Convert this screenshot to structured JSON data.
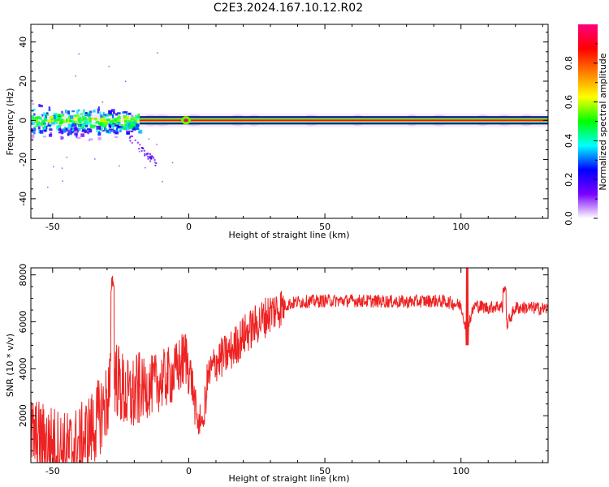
{
  "title": "C2E3.2024.167.10.12.R02",
  "chart_data": [
    {
      "type": "heatmap",
      "xlabel": "Height of straight line (km)",
      "ylabel": "Frequency (Hz)",
      "xlim": [
        -58,
        132
      ],
      "ylim": [
        -50,
        49
      ],
      "xticks": [
        -50,
        0,
        50,
        100
      ],
      "yticks": [
        -40,
        -20,
        0,
        20,
        40
      ],
      "grid": false,
      "colorbar": {
        "label": "Normalized spectral amplitude",
        "range": [
          0.0,
          1.0
        ],
        "ticks": [
          0.0,
          0.2,
          0.4,
          0.6,
          0.8
        ],
        "colors": [
          "#ffffff",
          "#7a00ff",
          "#0000ff",
          "#00ffff",
          "#00ff00",
          "#ffff00",
          "#ff7f00",
          "#ff0000",
          "#ff0080"
        ]
      },
      "carrier": {
        "frequency_hz": 0,
        "x_range": [
          -58,
          132
        ]
      },
      "scatter_region": {
        "x_range": [
          -58,
          -18
        ],
        "y_range": [
          -10,
          5
        ]
      }
    },
    {
      "type": "line",
      "xlabel": "Height of straight line (km)",
      "ylabel": "SNR (10 * v/v)",
      "xlim": [
        -58,
        132
      ],
      "ylim": [
        0,
        8300
      ],
      "xticks": [
        -50,
        0,
        50,
        100
      ],
      "yticks": [
        2000,
        4000,
        6000,
        8000
      ],
      "grid": false,
      "series": [
        {
          "color": "#ee2222",
          "x": [
            -58,
            -55,
            -50,
            -45,
            -40,
            -35,
            -30,
            -28,
            -25,
            -22,
            -18,
            -15,
            -10,
            -5,
            -3,
            -1,
            1,
            3,
            5,
            7,
            10,
            15,
            20,
            25,
            30,
            35,
            40,
            50,
            60,
            70,
            80,
            90,
            95,
            100,
            102,
            105,
            110,
            115,
            116,
            120,
            125,
            132
          ],
          "y": [
            1200,
            1000,
            800,
            500,
            800,
            1500,
            2600,
            4000,
            3200,
            2700,
            3100,
            3200,
            3500,
            3800,
            4200,
            4500,
            3600,
            1800,
            1600,
            3600,
            4300,
            4700,
            5400,
            5900,
            6400,
            6700,
            6850,
            6900,
            6900,
            6880,
            6850,
            6900,
            6850,
            6700,
            5700,
            6700,
            6600,
            6700,
            5700,
            6600,
            6600,
            6550
          ]
        }
      ]
    }
  ]
}
